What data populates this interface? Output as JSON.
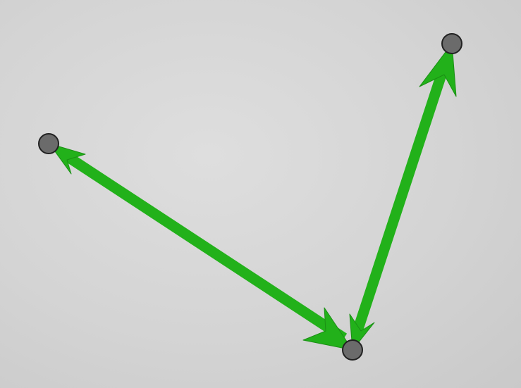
{
  "diagram": {
    "colors": {
      "background": "#d6d6d6",
      "arrow": "#22b11a",
      "arrow_outline": "#1a8f14",
      "node_fill": "#6b6b6b",
      "node_stroke": "#222222"
    },
    "nodes": [
      {
        "id": "left-point"
      },
      {
        "id": "top-right-point"
      },
      {
        "id": "bottom-point"
      }
    ],
    "edges": [
      {
        "id": "arrow-bottom-to-left",
        "from": "bottom-point",
        "to": "left-point",
        "bidirectional": true
      },
      {
        "id": "arrow-bottom-to-top-right",
        "from": "bottom-point",
        "to": "top-right-point",
        "bidirectional": true
      }
    ]
  }
}
